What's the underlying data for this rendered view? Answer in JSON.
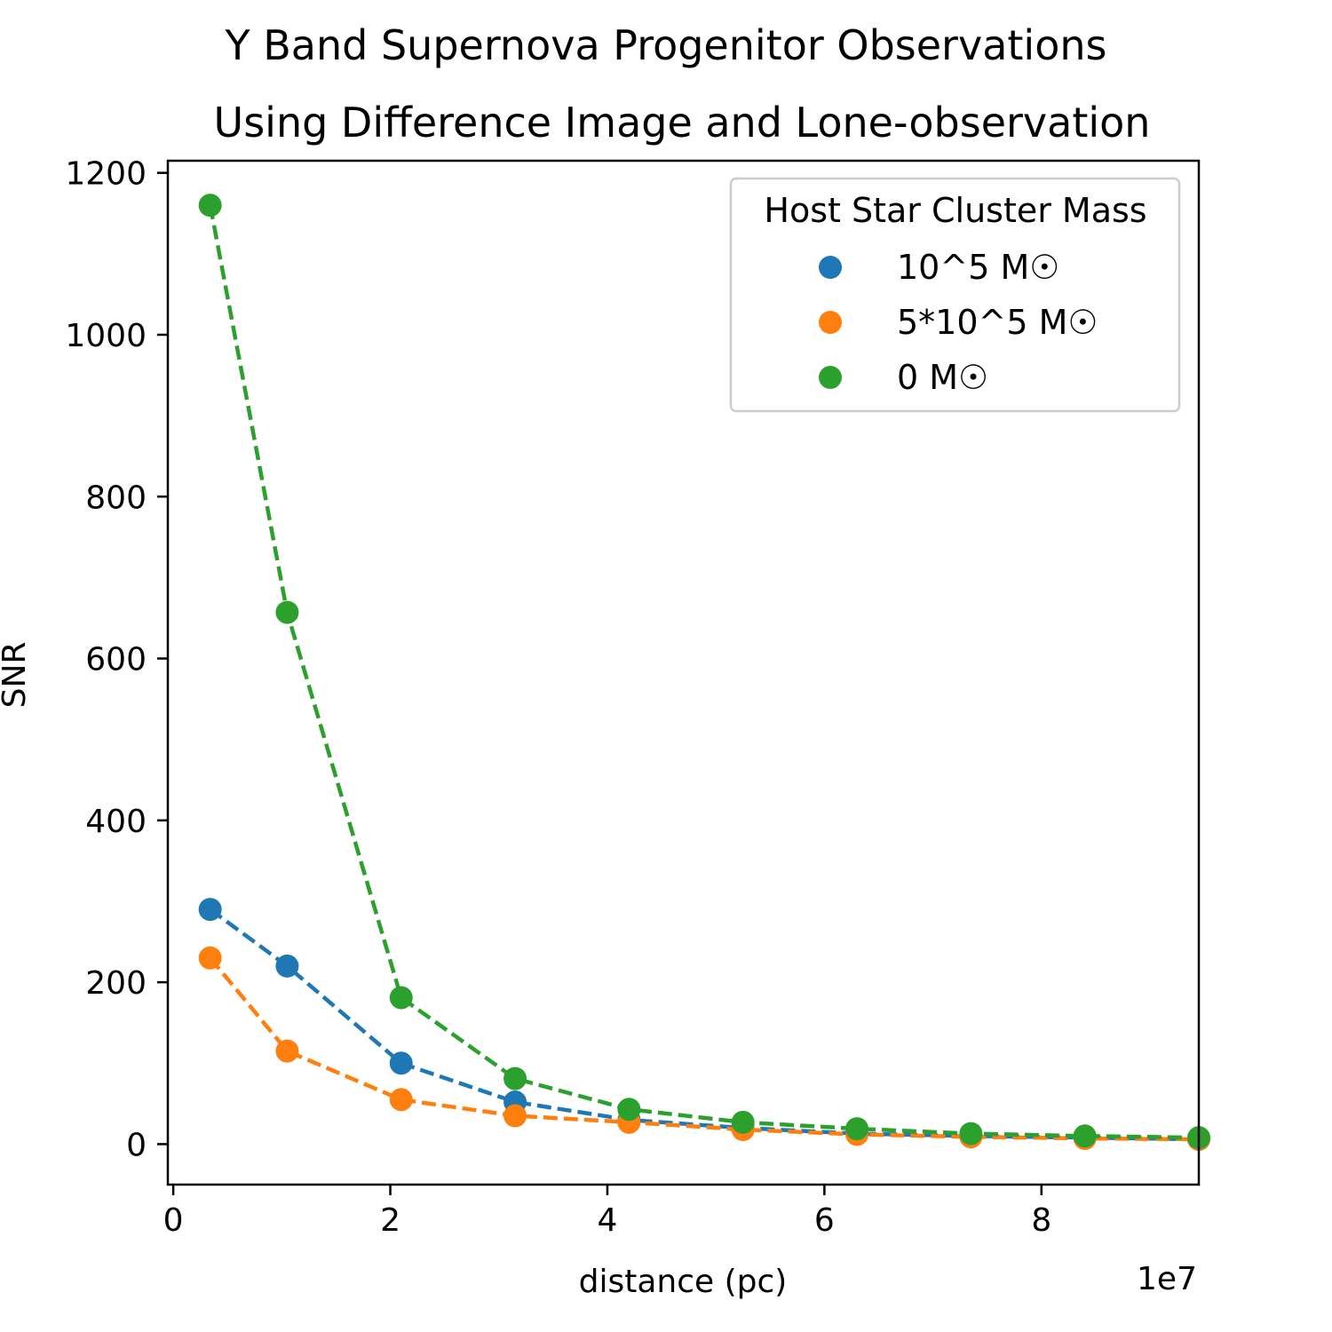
{
  "chart_data": {
    "type": "scatter",
    "title": "Y Band Supernova Progenitor Observations",
    "subtitle": "Using Difference Image and Lone-observation",
    "xlabel": "distance (pc)",
    "ylabel": "SNR",
    "x_offset_text": "1e7",
    "xlim": [
      -0.05,
      9.45
    ],
    "ylim": [
      -50,
      1215
    ],
    "x_ticks": [
      0,
      2,
      4,
      6,
      8
    ],
    "y_ticks": [
      0,
      200,
      400,
      600,
      800,
      1000,
      1200
    ],
    "legend": {
      "title": "Host Star Cluster Mass",
      "position": "top-right"
    },
    "line_style": "dashed",
    "x": [
      0.34,
      1.05,
      2.1,
      3.15,
      4.2,
      5.25,
      6.3,
      7.35,
      8.4,
      9.45
    ],
    "series": [
      {
        "name": "10^5 M☉",
        "color": "#1f77b4",
        "values": [
          290,
          220,
          100,
          52,
          30,
          20,
          13,
          10,
          8,
          6
        ]
      },
      {
        "name": "5*10^5 M☉",
        "color": "#ff7f0e",
        "values": [
          230,
          115,
          55,
          35,
          27,
          18,
          12,
          9,
          7,
          6
        ]
      },
      {
        "name": "0 M☉",
        "color": "#2ca02c",
        "values": [
          1160,
          657,
          181,
          81,
          43,
          27,
          19,
          13,
          10,
          8
        ]
      }
    ]
  }
}
